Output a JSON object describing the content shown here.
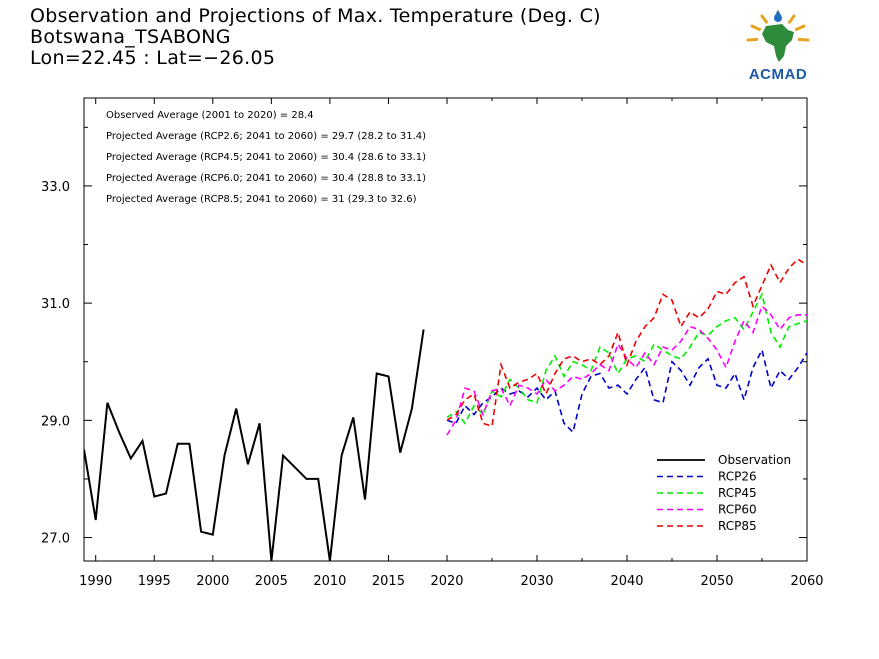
{
  "title": {
    "line1": "Observation and Projections of Max. Temperature (Deg. C)",
    "line2": "Botswana_TSABONG",
    "line3": "Lon=22.45 : Lat=−26.05"
  },
  "logo": {
    "text": "ACMAD",
    "icon": "africa-map-logo"
  },
  "stats": [
    "Observed Average (2001 to 2020) = 28.4",
    "Projected Average (RCP2.6; 2041 to 2060) = 29.7 (28.2 to 31.4)",
    "Projected Average (RCP4.5; 2041 to 2060) = 30.4 (28.6 to 33.1)",
    "Projected Average (RCP6.0; 2041 to 2060) = 30.4 (28.8 to 33.1)",
    "Projected Average (RCP8.5; 2041 to 2060) = 31 (29.3 to 32.6)"
  ],
  "chart_data": {
    "type": "line",
    "xlim": [
      1989,
      2060
    ],
    "ylim": [
      26.6,
      34.5
    ],
    "grid": false,
    "legend_position": "bottom-right",
    "x_ticks_left": [
      "1990",
      "1995",
      "2000",
      "2005",
      "2010",
      "2015",
      "2020"
    ],
    "x_ticks_right": [
      "2030",
      "2040",
      "2050",
      "2060"
    ],
    "y_ticks": [
      "27.0",
      "29.0",
      "31.0",
      "33.0"
    ],
    "series": [
      {
        "name": "Observation",
        "color": "#000000",
        "dash": "solid",
        "x": [
          1989,
          1990,
          1991,
          1992,
          1993,
          1994,
          1995,
          1996,
          1997,
          1998,
          1999,
          2000,
          2001,
          2002,
          2003,
          2004,
          2005,
          2006,
          2007,
          2008,
          2009,
          2010,
          2011,
          2012,
          2013,
          2014,
          2015,
          2016,
          2017,
          2018,
          2019,
          2020
        ],
        "y": [
          28.5,
          27.3,
          29.3,
          28.8,
          28.35,
          28.65,
          27.7,
          27.75,
          28.6,
          28.6,
          27.1,
          27.05,
          28.4,
          29.2,
          28.25,
          28.95,
          26.6,
          28.4,
          28.2,
          28.0,
          28.0,
          26.6,
          28.4,
          29.05,
          27.65,
          29.8,
          29.75,
          28.45,
          29.2,
          30.55,
          null,
          null
        ]
      },
      {
        "name": "RCP26",
        "color": "#0000cc",
        "dash": "dashed",
        "x": [
          2020,
          2021,
          2022,
          2023,
          2024,
          2025,
          2026,
          2027,
          2028,
          2029,
          2030,
          2031,
          2032,
          2033,
          2034,
          2035,
          2036,
          2037,
          2038,
          2039,
          2040,
          2041,
          2042,
          2043,
          2044,
          2045,
          2046,
          2047,
          2048,
          2049,
          2050,
          2051,
          2052,
          2053,
          2054,
          2055,
          2056,
          2057,
          2058,
          2059,
          2060
        ],
        "y": [
          29.0,
          28.95,
          29.25,
          29.1,
          29.3,
          29.4,
          29.55,
          29.45,
          29.5,
          29.4,
          29.55,
          29.35,
          29.5,
          28.95,
          28.8,
          29.45,
          29.75,
          29.8,
          29.55,
          29.6,
          29.45,
          29.7,
          29.9,
          29.35,
          29.3,
          30.0,
          29.85,
          29.6,
          29.9,
          30.05,
          29.6,
          29.55,
          29.8,
          29.35,
          29.9,
          30.2,
          29.55,
          29.85,
          29.7,
          29.9,
          30.15
        ]
      },
      {
        "name": "RCP45",
        "color": "#00ee00",
        "dash": "dashed",
        "x": [
          2020,
          2021,
          2022,
          2023,
          2024,
          2025,
          2026,
          2027,
          2028,
          2029,
          2030,
          2031,
          2032,
          2033,
          2034,
          2035,
          2036,
          2037,
          2038,
          2039,
          2040,
          2041,
          2042,
          2043,
          2044,
          2045,
          2046,
          2047,
          2048,
          2049,
          2050,
          2051,
          2052,
          2053,
          2054,
          2055,
          2056,
          2057,
          2058,
          2059,
          2060
        ],
        "y": [
          29.05,
          29.15,
          28.95,
          29.25,
          29.1,
          29.5,
          29.4,
          29.7,
          29.55,
          29.35,
          29.3,
          29.85,
          30.1,
          29.75,
          30.0,
          29.95,
          29.85,
          30.25,
          30.15,
          29.8,
          30.05,
          30.1,
          30.0,
          30.3,
          30.2,
          30.1,
          30.05,
          30.25,
          30.5,
          30.45,
          30.6,
          30.7,
          30.75,
          30.55,
          30.85,
          31.15,
          30.5,
          30.25,
          30.6,
          30.65,
          30.7
        ]
      },
      {
        "name": "RCP60",
        "color": "#ff00ff",
        "dash": "dashed",
        "x": [
          2020,
          2021,
          2022,
          2023,
          2024,
          2025,
          2026,
          2027,
          2028,
          2029,
          2030,
          2031,
          2032,
          2033,
          2034,
          2035,
          2036,
          2037,
          2038,
          2039,
          2040,
          2041,
          2042,
          2043,
          2044,
          2045,
          2046,
          2047,
          2048,
          2049,
          2050,
          2051,
          2052,
          2053,
          2054,
          2055,
          2056,
          2057,
          2058,
          2059,
          2060
        ],
        "y": [
          28.75,
          29.0,
          29.55,
          29.5,
          29.1,
          29.5,
          29.55,
          29.25,
          29.6,
          29.55,
          29.45,
          29.7,
          29.5,
          29.6,
          29.75,
          29.7,
          29.8,
          29.95,
          29.85,
          30.3,
          30.05,
          29.9,
          30.15,
          29.95,
          30.25,
          30.2,
          30.35,
          30.6,
          30.55,
          30.4,
          30.2,
          29.9,
          30.35,
          30.7,
          30.5,
          30.95,
          30.8,
          30.55,
          30.75,
          30.8,
          30.8
        ]
      },
      {
        "name": "RCP85",
        "color": "#ee0000",
        "dash": "dashed",
        "x": [
          2020,
          2021,
          2022,
          2023,
          2024,
          2025,
          2026,
          2027,
          2028,
          2029,
          2030,
          2031,
          2032,
          2033,
          2034,
          2035,
          2036,
          2037,
          2038,
          2039,
          2040,
          2041,
          2042,
          2043,
          2044,
          2045,
          2046,
          2047,
          2048,
          2049,
          2050,
          2051,
          2052,
          2053,
          2054,
          2055,
          2056,
          2057,
          2058,
          2059,
          2060
        ],
        "y": [
          29.0,
          29.1,
          29.35,
          29.45,
          28.95,
          28.9,
          29.95,
          29.55,
          29.65,
          29.7,
          29.8,
          29.45,
          29.8,
          30.05,
          30.1,
          30.0,
          30.05,
          29.95,
          30.1,
          30.5,
          29.95,
          30.35,
          30.6,
          30.75,
          31.15,
          31.05,
          30.6,
          30.85,
          30.75,
          30.9,
          31.2,
          31.15,
          31.35,
          31.45,
          30.95,
          31.3,
          31.65,
          31.35,
          31.6,
          31.75,
          31.65
        ]
      }
    ]
  }
}
